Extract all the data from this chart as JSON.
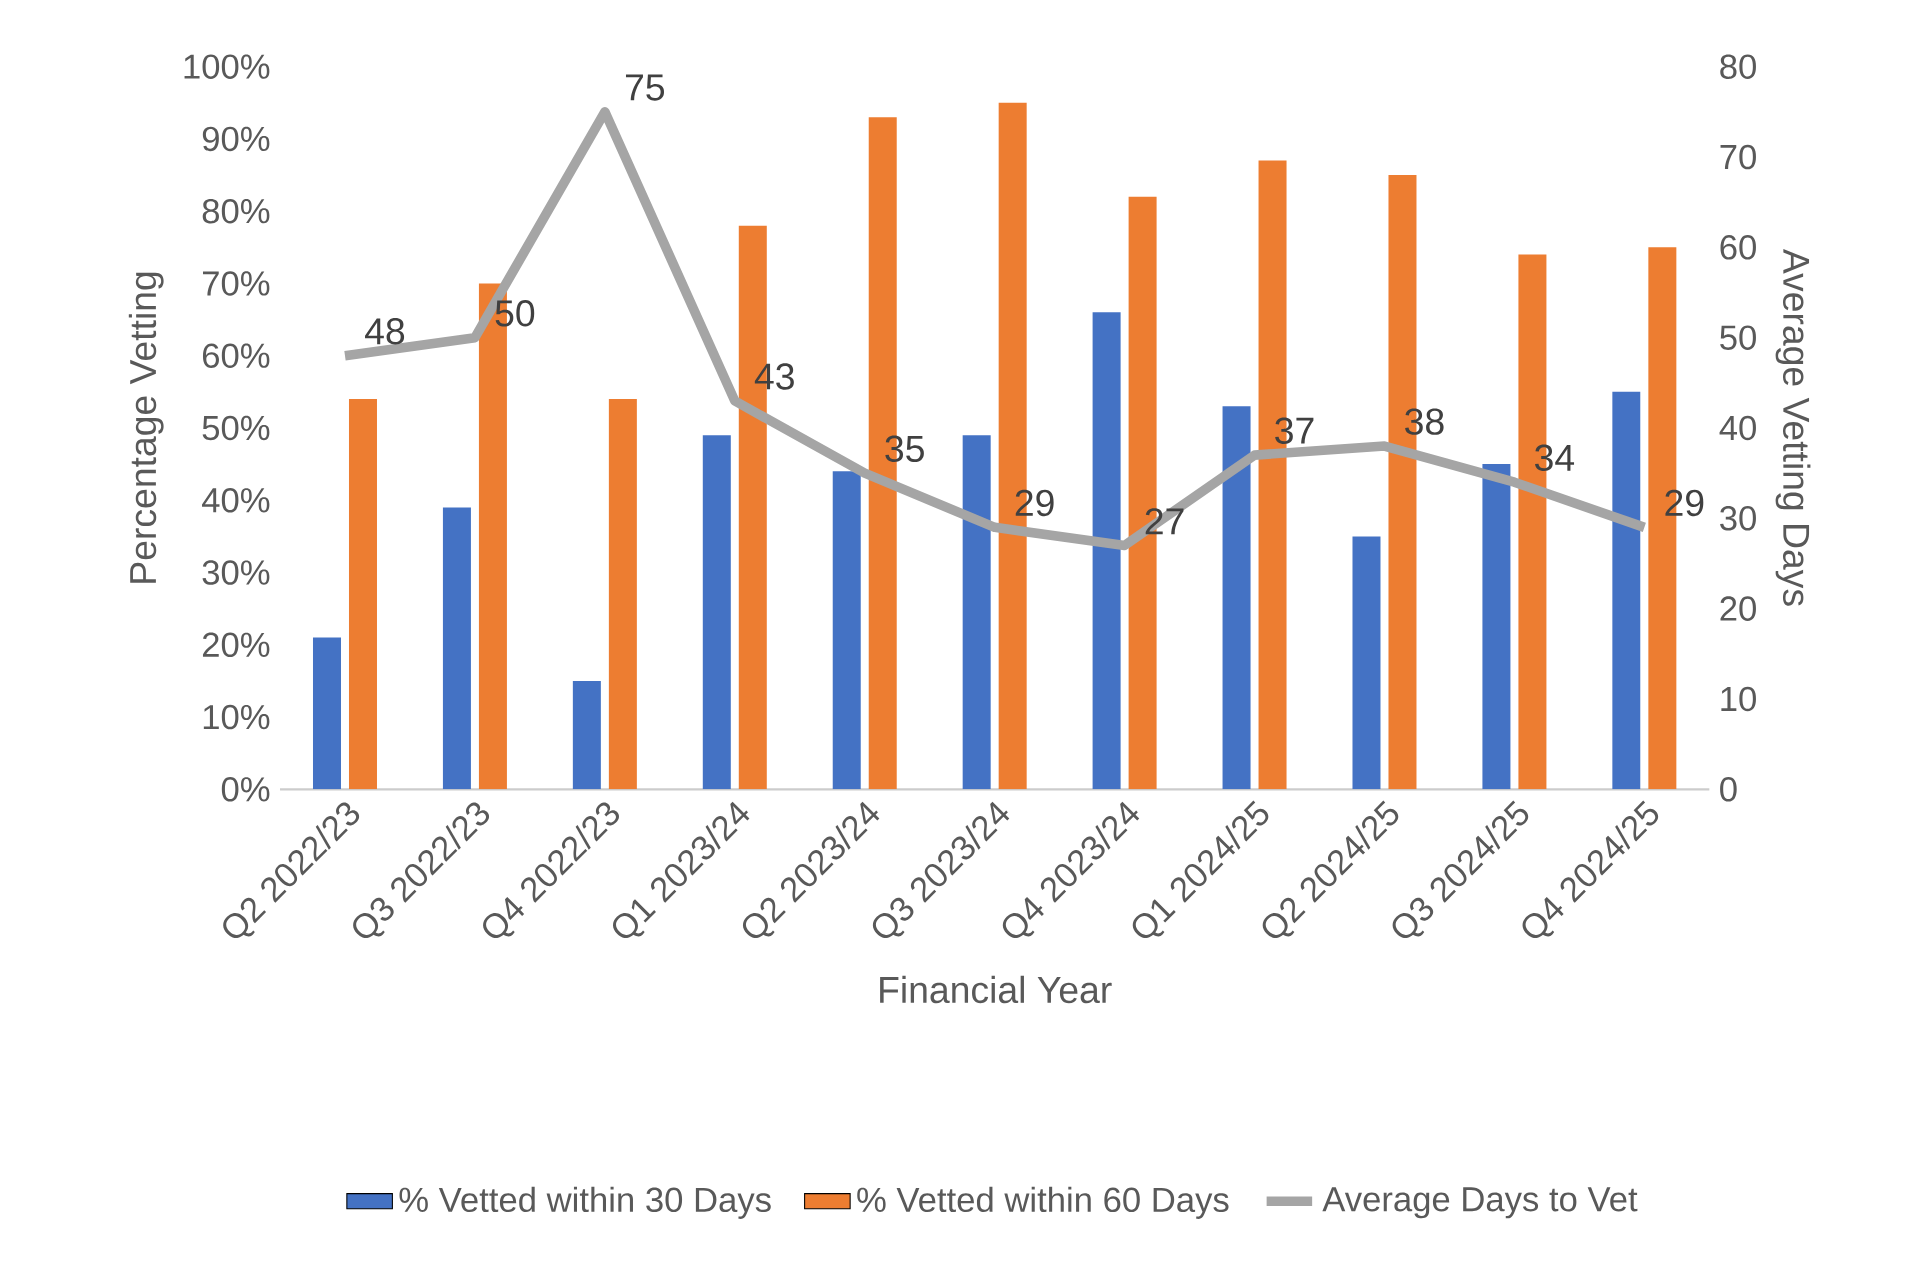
{
  "chart_data": {
    "type": "bar",
    "xlabel": "Financial Year",
    "ylabel": "Percentage Vetting",
    "y2label": "Average Vetting Days",
    "legend": "bottom",
    "categories": [
      "Q2 2022/23",
      "Q3 2022/23",
      "Q4 2022/23",
      "Q1 2023/24",
      "Q2 2023/24",
      "Q3 2023/24",
      "Q4 2023/24",
      "Q1 2024/25",
      "Q2 2024/25",
      "Q3 2024/25",
      "Q4 2024/25"
    ],
    "ylim": [
      0,
      100
    ],
    "yticks": [
      {
        "value": 0,
        "label": "0%"
      },
      {
        "value": 10,
        "label": "10%"
      },
      {
        "value": 20,
        "label": "20%"
      },
      {
        "value": 30,
        "label": "30%"
      },
      {
        "value": 40,
        "label": "40%"
      },
      {
        "value": 50,
        "label": "50%"
      },
      {
        "value": 60,
        "label": "60%"
      },
      {
        "value": 70,
        "label": "70%"
      },
      {
        "value": 80,
        "label": "80%"
      },
      {
        "value": 90,
        "label": "90%"
      },
      {
        "value": 100,
        "label": "100%"
      }
    ],
    "y2lim": [
      0,
      80
    ],
    "y2ticks": [
      0,
      10,
      20,
      30,
      40,
      50,
      60,
      70,
      80
    ],
    "series": [
      {
        "name": "% Vetted within 30 Days",
        "type": "bar",
        "color": "#4472c4",
        "values": [
          21,
          39,
          15,
          49,
          44,
          49,
          66,
          53,
          35,
          45,
          55
        ]
      },
      {
        "name": "% Vetted within 60 Days",
        "type": "bar",
        "color": "#ed7d31",
        "values": [
          54,
          70,
          54,
          78,
          93,
          95,
          82,
          87,
          85,
          74,
          75
        ]
      },
      {
        "name": "Average Days to Vet",
        "type": "line",
        "axis": "y2",
        "color": "#a5a5a5",
        "values": [
          48,
          50,
          75,
          43,
          35,
          29,
          27,
          37,
          38,
          34,
          29
        ],
        "value_labels": [
          "48",
          "50",
          "75",
          "43",
          "35",
          "29",
          "27",
          "37",
          "38",
          "34",
          "29"
        ]
      }
    ]
  }
}
